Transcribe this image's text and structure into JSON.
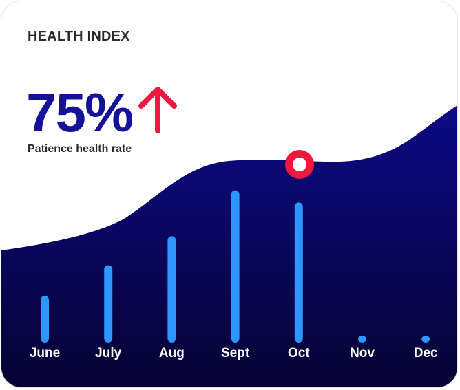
{
  "header": {
    "title": "HEALTH INDEX",
    "value": "75%",
    "subtitle": "Patience health rate",
    "trend_icon": "arrow-up-icon"
  },
  "colors": {
    "accent": "#15119a",
    "trend": "#f0183e",
    "bar": "#2f95ff",
    "wave_top": "#0d0a86",
    "wave_bottom": "#050232",
    "marker": "#f0183e"
  },
  "chart_data": {
    "type": "bar",
    "categories": [
      "June",
      "July",
      "Aug",
      "Sept",
      "Oct",
      "Nov",
      "Dec"
    ],
    "values": [
      28,
      48,
      67,
      97,
      89,
      0,
      0
    ],
    "ylim": [
      0,
      100
    ],
    "grid": false,
    "highlight": {
      "category": "Oct",
      "icon": "marker-dot-icon"
    }
  }
}
